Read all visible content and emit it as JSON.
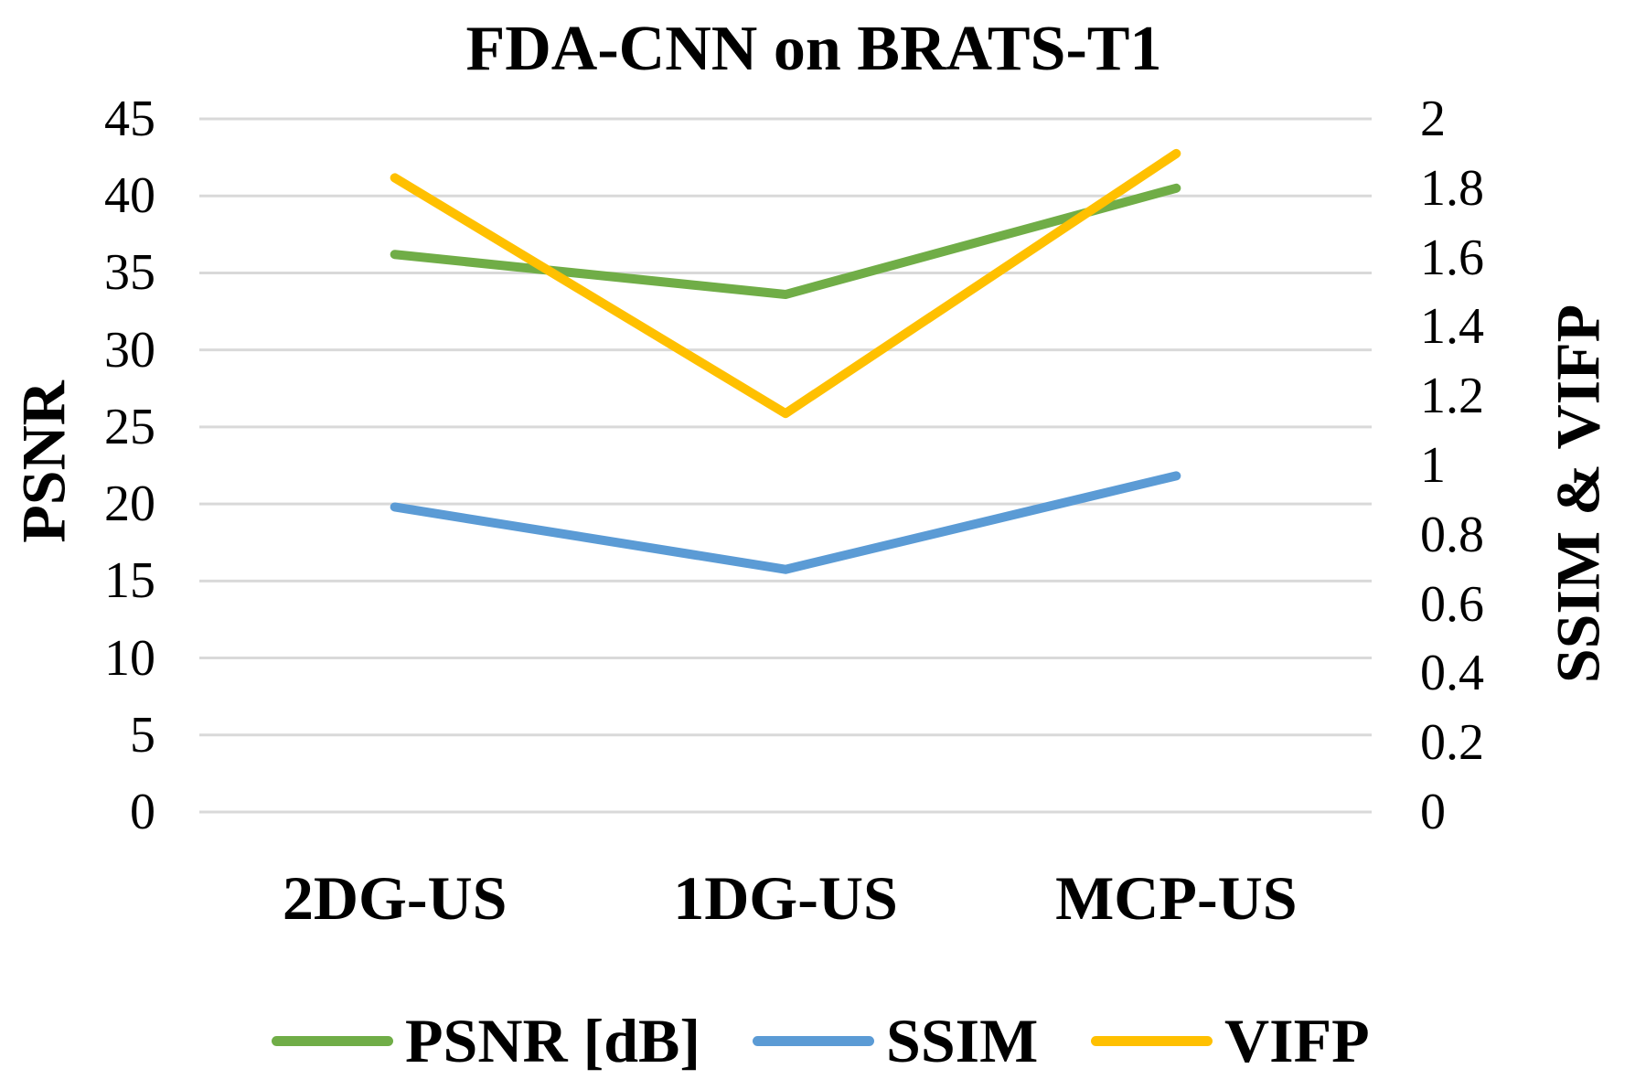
{
  "chart_data": {
    "type": "line",
    "title": "FDA-CNN on BRATS-T1",
    "categories": [
      "2DG-US",
      "1DG-US",
      "MCP-US"
    ],
    "left_axis": {
      "title": "PSNR",
      "min": 0,
      "max": 45,
      "tick_step": 5,
      "ticks": [
        "45",
        "40",
        "35",
        "30",
        "25",
        "20",
        "15",
        "10",
        "5",
        "0"
      ]
    },
    "right_axis": {
      "title": "SSIM & VIFP",
      "min": 0,
      "max": 2,
      "tick_step": 0.2,
      "ticks": [
        "2",
        "1.8",
        "1.6",
        "1.4",
        "1.2",
        "1",
        "0.8",
        "0.6",
        "0.4",
        "0.2",
        "0"
      ]
    },
    "series": [
      {
        "name": "PSNR [dB]",
        "axis": "left",
        "color": "#70AD47",
        "values": [
          36.2,
          33.6,
          40.5
        ]
      },
      {
        "name": "SSIM",
        "axis": "right",
        "color": "#5B9BD5",
        "values": [
          0.88,
          0.7,
          0.97
        ]
      },
      {
        "name": "VIFP",
        "axis": "right",
        "color": "#FFC000",
        "values": [
          1.83,
          1.15,
          1.9
        ]
      }
    ],
    "grid": true,
    "gridline_color": "#D9D9D9",
    "background_color": "#FFFFFF",
    "text_color": "#000000",
    "legend_position": "bottom"
  }
}
